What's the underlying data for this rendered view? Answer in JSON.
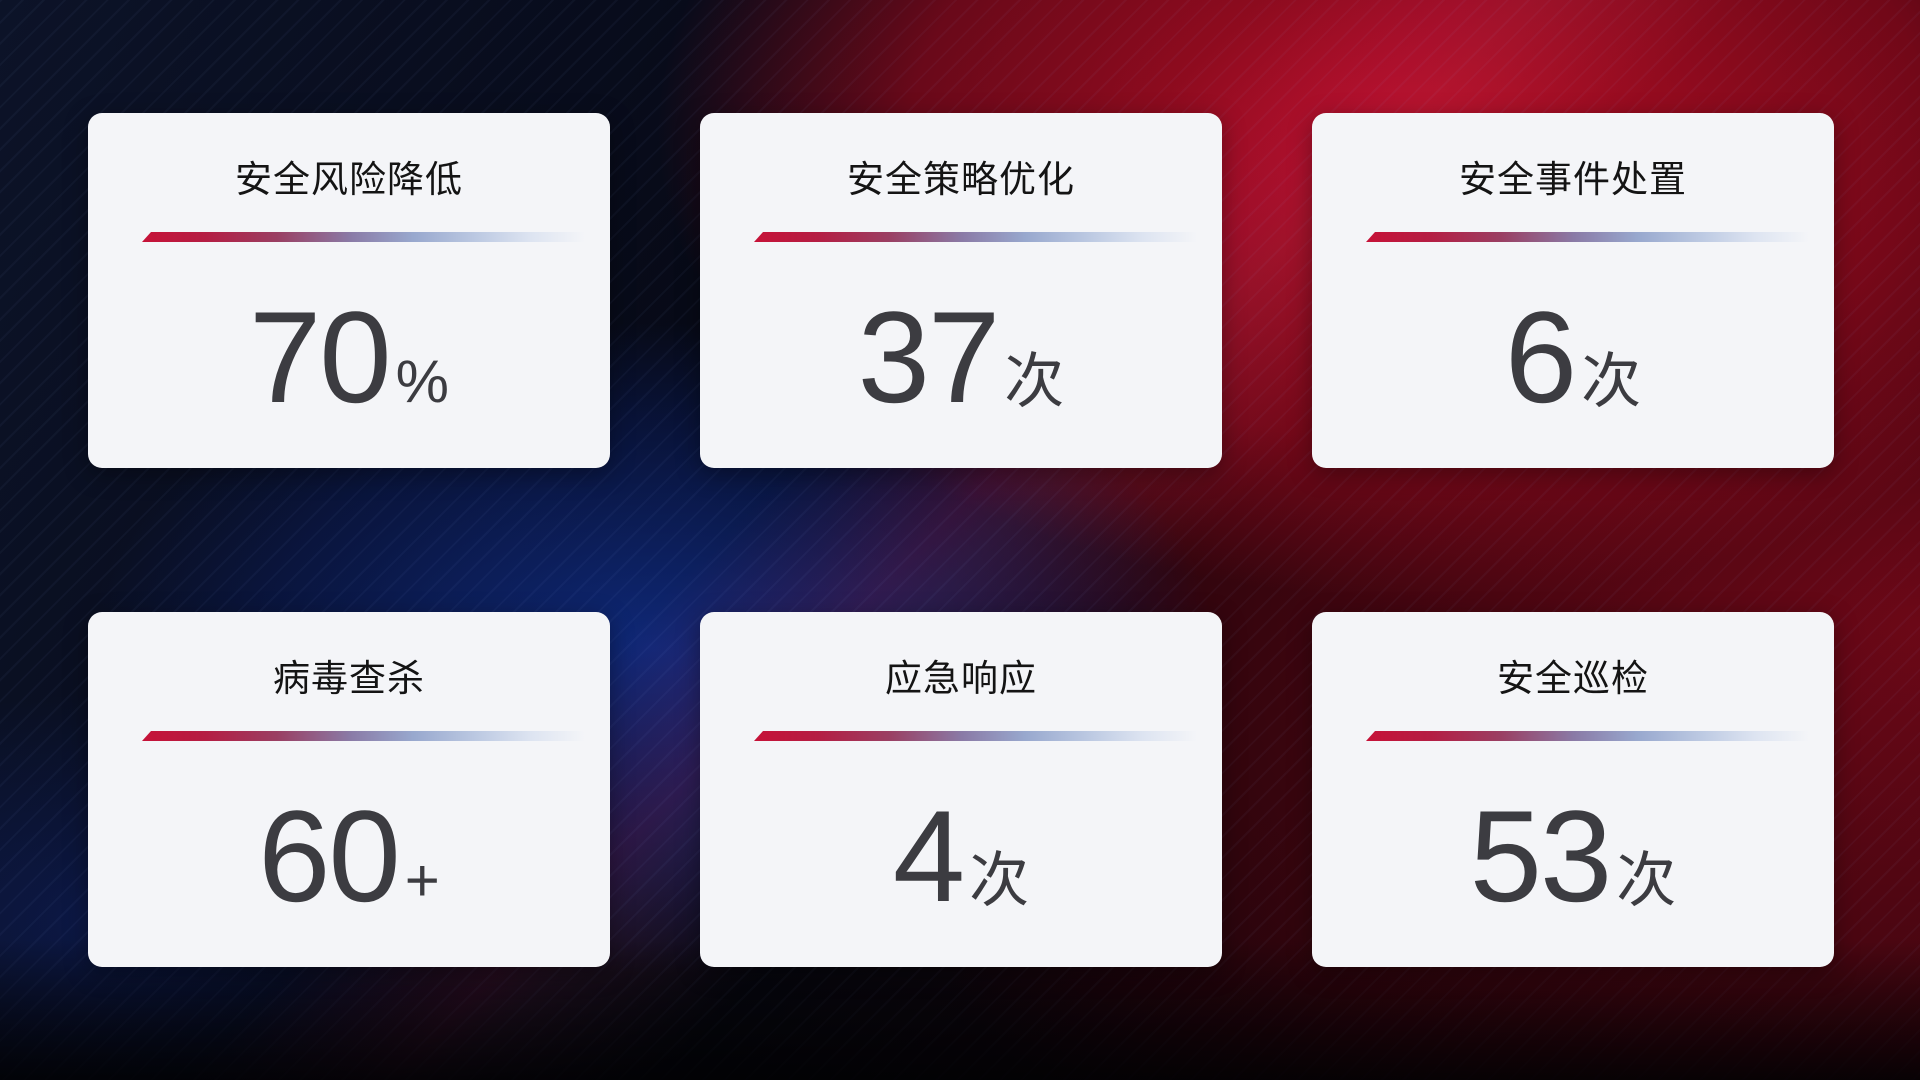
{
  "colors": {
    "card_background": "#f4f5f8",
    "title_text": "#141414",
    "value_text": "#3c3c41",
    "divider_red": "#c61238",
    "divider_blue": "#bcc9e2",
    "background_navy": "#0a0f24",
    "background_red": "#a60d24",
    "background_blue_glow": "#12349c"
  },
  "cards": [
    {
      "title": "安全风险降低",
      "value": "70",
      "unit": "%"
    },
    {
      "title": "安全策略优化",
      "value": "37",
      "unit": "次"
    },
    {
      "title": "安全事件处置",
      "value": "6",
      "unit": "次"
    },
    {
      "title": "病毒查杀",
      "value": "60",
      "unit": "+"
    },
    {
      "title": "应急响应",
      "value": "4",
      "unit": "次"
    },
    {
      "title": "安全巡检",
      "value": "53",
      "unit": "次"
    }
  ]
}
